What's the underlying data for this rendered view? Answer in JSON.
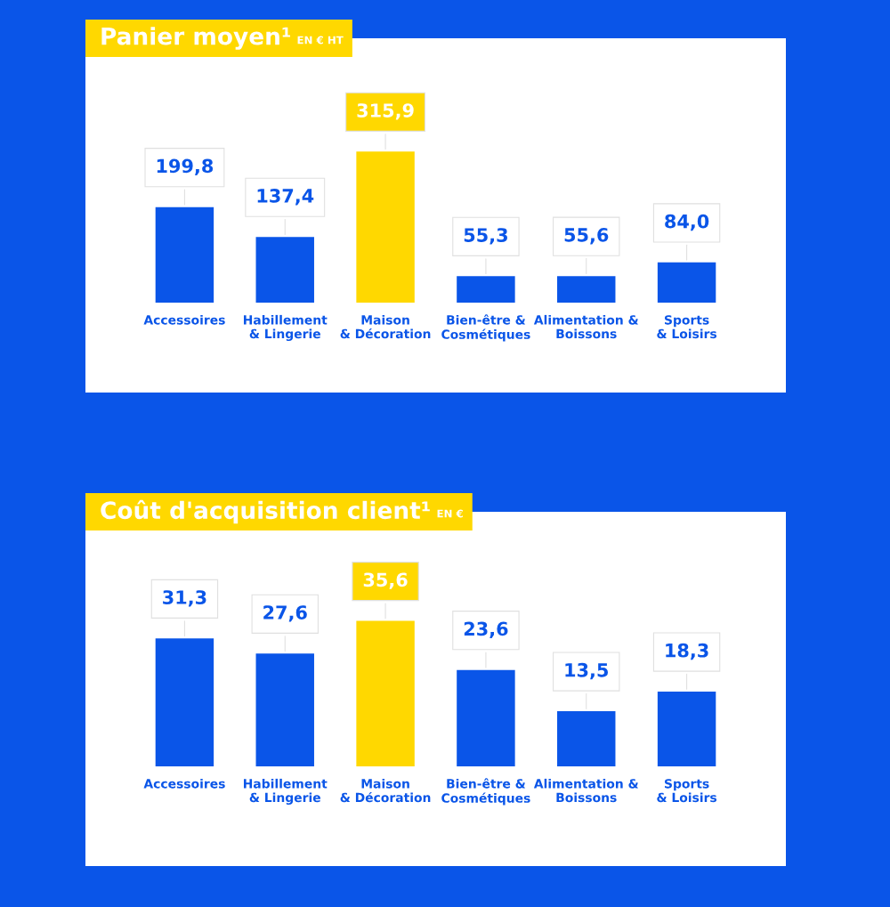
{
  "chart_data": [
    {
      "type": "bar",
      "title": "Panier moyen¹",
      "subtitle": "EN € HT",
      "categories": [
        "Accessoires",
        "Habillement\n& Lingerie",
        "Maison\n& Décoration",
        "Bien-être &\nCosmétiques",
        "Alimentation &\nBoissons",
        "Sports\n& Loisirs"
      ],
      "values": [
        199.8,
        137.4,
        315.9,
        55.3,
        55.6,
        84.0
      ],
      "value_labels": [
        "199,8",
        "137,4",
        "315,9",
        "55,3",
        "55,6",
        "84,0"
      ],
      "colors": [
        "#0a55e8",
        "#0a55e8",
        "#ffd800",
        "#0a55e8",
        "#0a55e8",
        "#0a55e8"
      ],
      "grid": false,
      "legend": false,
      "tick_labels": "x"
    },
    {
      "type": "bar",
      "title": "Coût d'acquisition client¹",
      "subtitle": "EN €",
      "categories": [
        "Accessoires",
        "Habillement\n& Lingerie",
        "Maison\n& Décoration",
        "Bien-être &\nCosmétiques",
        "Alimentation &\nBoissons",
        "Sports\n& Loisirs"
      ],
      "values": [
        31.3,
        27.6,
        35.6,
        23.6,
        13.5,
        18.3
      ],
      "value_labels": [
        "31,3",
        "27,6",
        "35,6",
        "23,6",
        "13,5",
        "18,3"
      ],
      "colors": [
        "#0a55e8",
        "#0a55e8",
        "#ffd800",
        "#0a55e8",
        "#0a55e8",
        "#0a55e8"
      ],
      "grid": false,
      "legend": false,
      "tick_labels": "x"
    }
  ]
}
